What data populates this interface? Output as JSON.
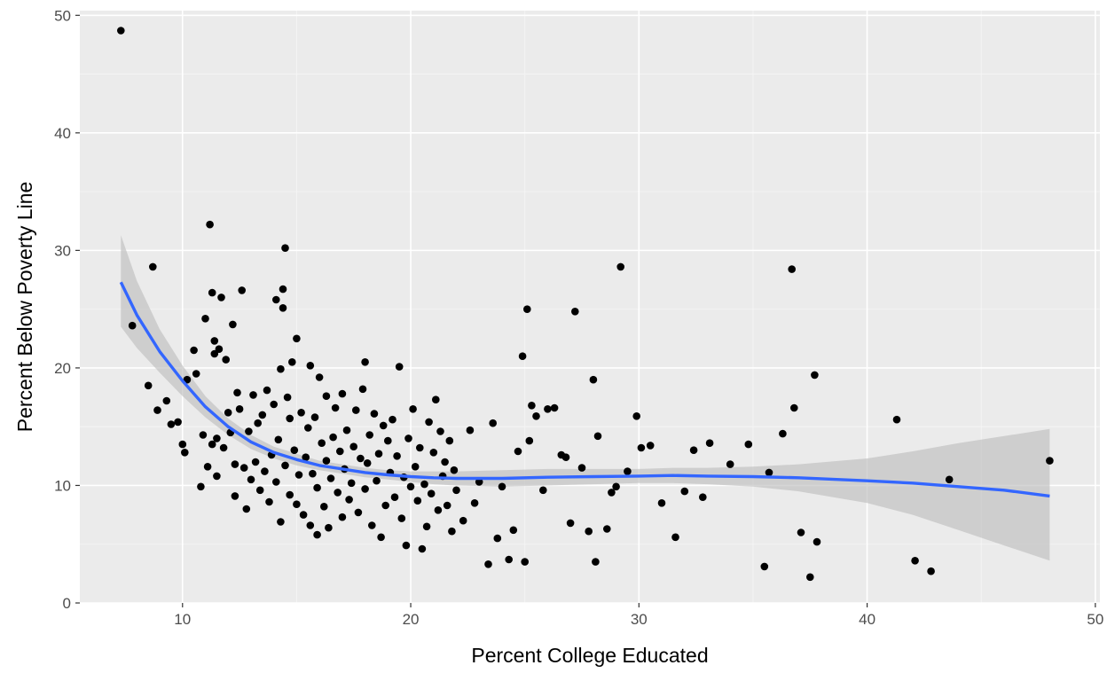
{
  "chart_data": {
    "type": "scatter",
    "title": "",
    "xlabel": "Percent College Educated",
    "ylabel": "Percent Below Poverty Line",
    "xlim": [
      5.5,
      50.2
    ],
    "ylim": [
      0,
      50.4
    ],
    "x_ticks": [
      10,
      20,
      30,
      40,
      50
    ],
    "y_ticks": [
      0,
      10,
      20,
      30,
      40,
      50
    ],
    "grid": true,
    "legend": "none",
    "colors": {
      "panel_background": "#ebebeb",
      "grid_major": "#ffffff",
      "grid_minor": "#f5f5f5",
      "point": "#000000",
      "smooth_line": "#3366ff",
      "ribbon": "#bfbfbf"
    },
    "points": [
      [
        7.3,
        48.7
      ],
      [
        7.8,
        23.6
      ],
      [
        8.5,
        18.5
      ],
      [
        8.7,
        28.6
      ],
      [
        8.9,
        16.4
      ],
      [
        9.3,
        17.2
      ],
      [
        9.5,
        15.2
      ],
      [
        9.8,
        15.4
      ],
      [
        10.0,
        13.5
      ],
      [
        10.1,
        12.8
      ],
      [
        10.2,
        19.0
      ],
      [
        10.5,
        21.5
      ],
      [
        10.6,
        19.5
      ],
      [
        10.8,
        9.9
      ],
      [
        10.9,
        14.3
      ],
      [
        11.0,
        24.2
      ],
      [
        11.1,
        11.6
      ],
      [
        11.2,
        32.2
      ],
      [
        11.3,
        26.4
      ],
      [
        11.3,
        13.5
      ],
      [
        11.4,
        22.3
      ],
      [
        11.4,
        21.2
      ],
      [
        11.5,
        14.0
      ],
      [
        11.5,
        10.8
      ],
      [
        11.6,
        21.6
      ],
      [
        11.7,
        26.0
      ],
      [
        11.8,
        13.2
      ],
      [
        11.9,
        20.7
      ],
      [
        12.0,
        16.2
      ],
      [
        12.1,
        14.5
      ],
      [
        12.2,
        23.7
      ],
      [
        12.3,
        11.8
      ],
      [
        12.3,
        9.1
      ],
      [
        12.4,
        17.9
      ],
      [
        12.5,
        16.5
      ],
      [
        12.6,
        26.6
      ],
      [
        12.7,
        11.5
      ],
      [
        12.8,
        8.0
      ],
      [
        12.9,
        14.6
      ],
      [
        13.0,
        10.5
      ],
      [
        13.1,
        17.7
      ],
      [
        13.2,
        12.0
      ],
      [
        13.3,
        15.3
      ],
      [
        13.4,
        9.6
      ],
      [
        13.5,
        16.0
      ],
      [
        13.6,
        11.2
      ],
      [
        13.7,
        18.1
      ],
      [
        13.8,
        8.6
      ],
      [
        13.9,
        12.6
      ],
      [
        14.0,
        16.9
      ],
      [
        14.1,
        25.8
      ],
      [
        14.1,
        10.3
      ],
      [
        14.2,
        13.9
      ],
      [
        14.3,
        19.9
      ],
      [
        14.3,
        6.9
      ],
      [
        14.4,
        26.7
      ],
      [
        14.4,
        25.1
      ],
      [
        14.5,
        30.2
      ],
      [
        14.5,
        11.7
      ],
      [
        14.6,
        17.5
      ],
      [
        14.7,
        9.2
      ],
      [
        14.7,
        15.7
      ],
      [
        14.8,
        20.5
      ],
      [
        14.9,
        13.0
      ],
      [
        15.0,
        22.5
      ],
      [
        15.0,
        8.4
      ],
      [
        15.1,
        10.9
      ],
      [
        15.2,
        16.2
      ],
      [
        15.3,
        7.5
      ],
      [
        15.4,
        12.4
      ],
      [
        15.5,
        14.9
      ],
      [
        15.6,
        20.2
      ],
      [
        15.6,
        6.6
      ],
      [
        15.7,
        11.0
      ],
      [
        15.8,
        15.8
      ],
      [
        15.9,
        5.8
      ],
      [
        15.9,
        9.8
      ],
      [
        16.0,
        19.2
      ],
      [
        16.1,
        13.6
      ],
      [
        16.2,
        8.2
      ],
      [
        16.3,
        12.1
      ],
      [
        16.3,
        17.6
      ],
      [
        16.4,
        6.4
      ],
      [
        16.5,
        10.6
      ],
      [
        16.6,
        14.1
      ],
      [
        16.7,
        16.6
      ],
      [
        16.8,
        9.4
      ],
      [
        16.9,
        12.9
      ],
      [
        17.0,
        7.3
      ],
      [
        17.0,
        17.8
      ],
      [
        17.1,
        11.4
      ],
      [
        17.2,
        14.7
      ],
      [
        17.3,
        8.8
      ],
      [
        17.4,
        10.2
      ],
      [
        17.5,
        13.3
      ],
      [
        17.6,
        16.4
      ],
      [
        17.7,
        7.7
      ],
      [
        17.8,
        12.3
      ],
      [
        17.9,
        18.2
      ],
      [
        18.0,
        20.5
      ],
      [
        18.0,
        9.7
      ],
      [
        18.1,
        11.9
      ],
      [
        18.2,
        14.3
      ],
      [
        18.3,
        6.6
      ],
      [
        18.4,
        16.1
      ],
      [
        18.5,
        10.4
      ],
      [
        18.6,
        12.7
      ],
      [
        18.7,
        5.6
      ],
      [
        18.8,
        15.1
      ],
      [
        18.9,
        8.3
      ],
      [
        19.0,
        13.8
      ],
      [
        19.1,
        11.1
      ],
      [
        19.2,
        15.6
      ],
      [
        19.3,
        9.0
      ],
      [
        19.4,
        12.5
      ],
      [
        19.5,
        20.1
      ],
      [
        19.6,
        7.2
      ],
      [
        19.7,
        10.7
      ],
      [
        19.8,
        4.9
      ],
      [
        19.9,
        14.0
      ],
      [
        20.0,
        9.9
      ],
      [
        20.1,
        16.5
      ],
      [
        20.2,
        11.6
      ],
      [
        20.3,
        8.7
      ],
      [
        20.4,
        13.2
      ],
      [
        20.5,
        4.6
      ],
      [
        20.6,
        10.1
      ],
      [
        20.7,
        6.5
      ],
      [
        20.8,
        15.4
      ],
      [
        20.9,
        9.3
      ],
      [
        21.0,
        12.8
      ],
      [
        21.1,
        17.3
      ],
      [
        21.2,
        7.9
      ],
      [
        21.3,
        14.6
      ],
      [
        21.4,
        10.8
      ],
      [
        21.5,
        12.0
      ],
      [
        21.6,
        8.3
      ],
      [
        21.7,
        13.8
      ],
      [
        21.8,
        6.1
      ],
      [
        21.9,
        11.3
      ],
      [
        22.0,
        9.6
      ],
      [
        22.3,
        7.0
      ],
      [
        22.6,
        14.7
      ],
      [
        22.8,
        8.5
      ],
      [
        23.0,
        10.3
      ],
      [
        23.4,
        3.3
      ],
      [
        23.6,
        15.3
      ],
      [
        23.8,
        5.5
      ],
      [
        24.0,
        9.9
      ],
      [
        24.3,
        3.7
      ],
      [
        24.5,
        6.2
      ],
      [
        24.7,
        12.9
      ],
      [
        24.9,
        21.0
      ],
      [
        25.0,
        3.5
      ],
      [
        25.1,
        25.0
      ],
      [
        25.2,
        13.8
      ],
      [
        25.3,
        16.8
      ],
      [
        25.5,
        15.9
      ],
      [
        25.8,
        9.6
      ],
      [
        26.0,
        16.5
      ],
      [
        26.3,
        16.6
      ],
      [
        26.6,
        12.6
      ],
      [
        26.8,
        12.4
      ],
      [
        27.0,
        6.8
      ],
      [
        27.2,
        24.8
      ],
      [
        27.5,
        11.5
      ],
      [
        27.8,
        6.1
      ],
      [
        28.0,
        19.0
      ],
      [
        28.1,
        3.5
      ],
      [
        28.2,
        14.2
      ],
      [
        28.6,
        6.3
      ],
      [
        28.8,
        9.4
      ],
      [
        29.0,
        9.9
      ],
      [
        29.2,
        28.6
      ],
      [
        29.5,
        11.2
      ],
      [
        29.9,
        15.9
      ],
      [
        30.1,
        13.2
      ],
      [
        30.5,
        13.4
      ],
      [
        31.0,
        8.5
      ],
      [
        31.6,
        5.6
      ],
      [
        32.0,
        9.5
      ],
      [
        32.4,
        13.0
      ],
      [
        32.8,
        9.0
      ],
      [
        33.1,
        13.6
      ],
      [
        34.0,
        11.8
      ],
      [
        34.8,
        13.5
      ],
      [
        35.5,
        3.1
      ],
      [
        35.7,
        11.1
      ],
      [
        36.3,
        14.4
      ],
      [
        36.7,
        28.4
      ],
      [
        36.8,
        16.6
      ],
      [
        37.1,
        6.0
      ],
      [
        37.5,
        2.2
      ],
      [
        37.7,
        19.4
      ],
      [
        37.8,
        5.2
      ],
      [
        41.3,
        15.6
      ],
      [
        42.1,
        3.6
      ],
      [
        42.8,
        2.7
      ],
      [
        43.6,
        10.5
      ],
      [
        48.0,
        12.1
      ]
    ],
    "smooth": {
      "method": "loess",
      "x": [
        7.3,
        8.0,
        9.0,
        10.0,
        11.0,
        12.0,
        13.0,
        14.0,
        15.0,
        16.0,
        17.0,
        18.0,
        19.0,
        20.0,
        21.0,
        22.0,
        24.0,
        26.0,
        28.0,
        30.0,
        31.5,
        33.0,
        35.0,
        37.0,
        40.0,
        42.0,
        44.0,
        46.0,
        48.0
      ],
      "y": [
        27.3,
        24.5,
        21.4,
        18.9,
        16.7,
        15.0,
        13.7,
        12.8,
        12.2,
        11.7,
        11.4,
        11.1,
        10.9,
        10.75,
        10.65,
        10.6,
        10.6,
        10.7,
        10.75,
        10.8,
        10.85,
        10.8,
        10.75,
        10.65,
        10.4,
        10.2,
        9.9,
        9.6,
        9.1
      ],
      "lower": [
        23.5,
        21.7,
        19.6,
        17.6,
        15.8,
        14.3,
        13.1,
        12.3,
        11.7,
        11.3,
        11.0,
        10.7,
        10.5,
        10.3,
        10.1,
        10.0,
        9.9,
        10.0,
        10.1,
        10.2,
        10.2,
        10.1,
        9.9,
        9.5,
        8.5,
        7.5,
        6.2,
        4.9,
        3.6
      ],
      "upper": [
        31.3,
        27.4,
        23.3,
        20.2,
        17.6,
        15.7,
        14.3,
        13.3,
        12.7,
        12.1,
        11.8,
        11.5,
        11.3,
        11.2,
        11.2,
        11.2,
        11.3,
        11.4,
        11.4,
        11.4,
        11.5,
        11.5,
        11.6,
        11.8,
        12.3,
        12.9,
        13.6,
        14.2,
        14.8
      ]
    }
  }
}
